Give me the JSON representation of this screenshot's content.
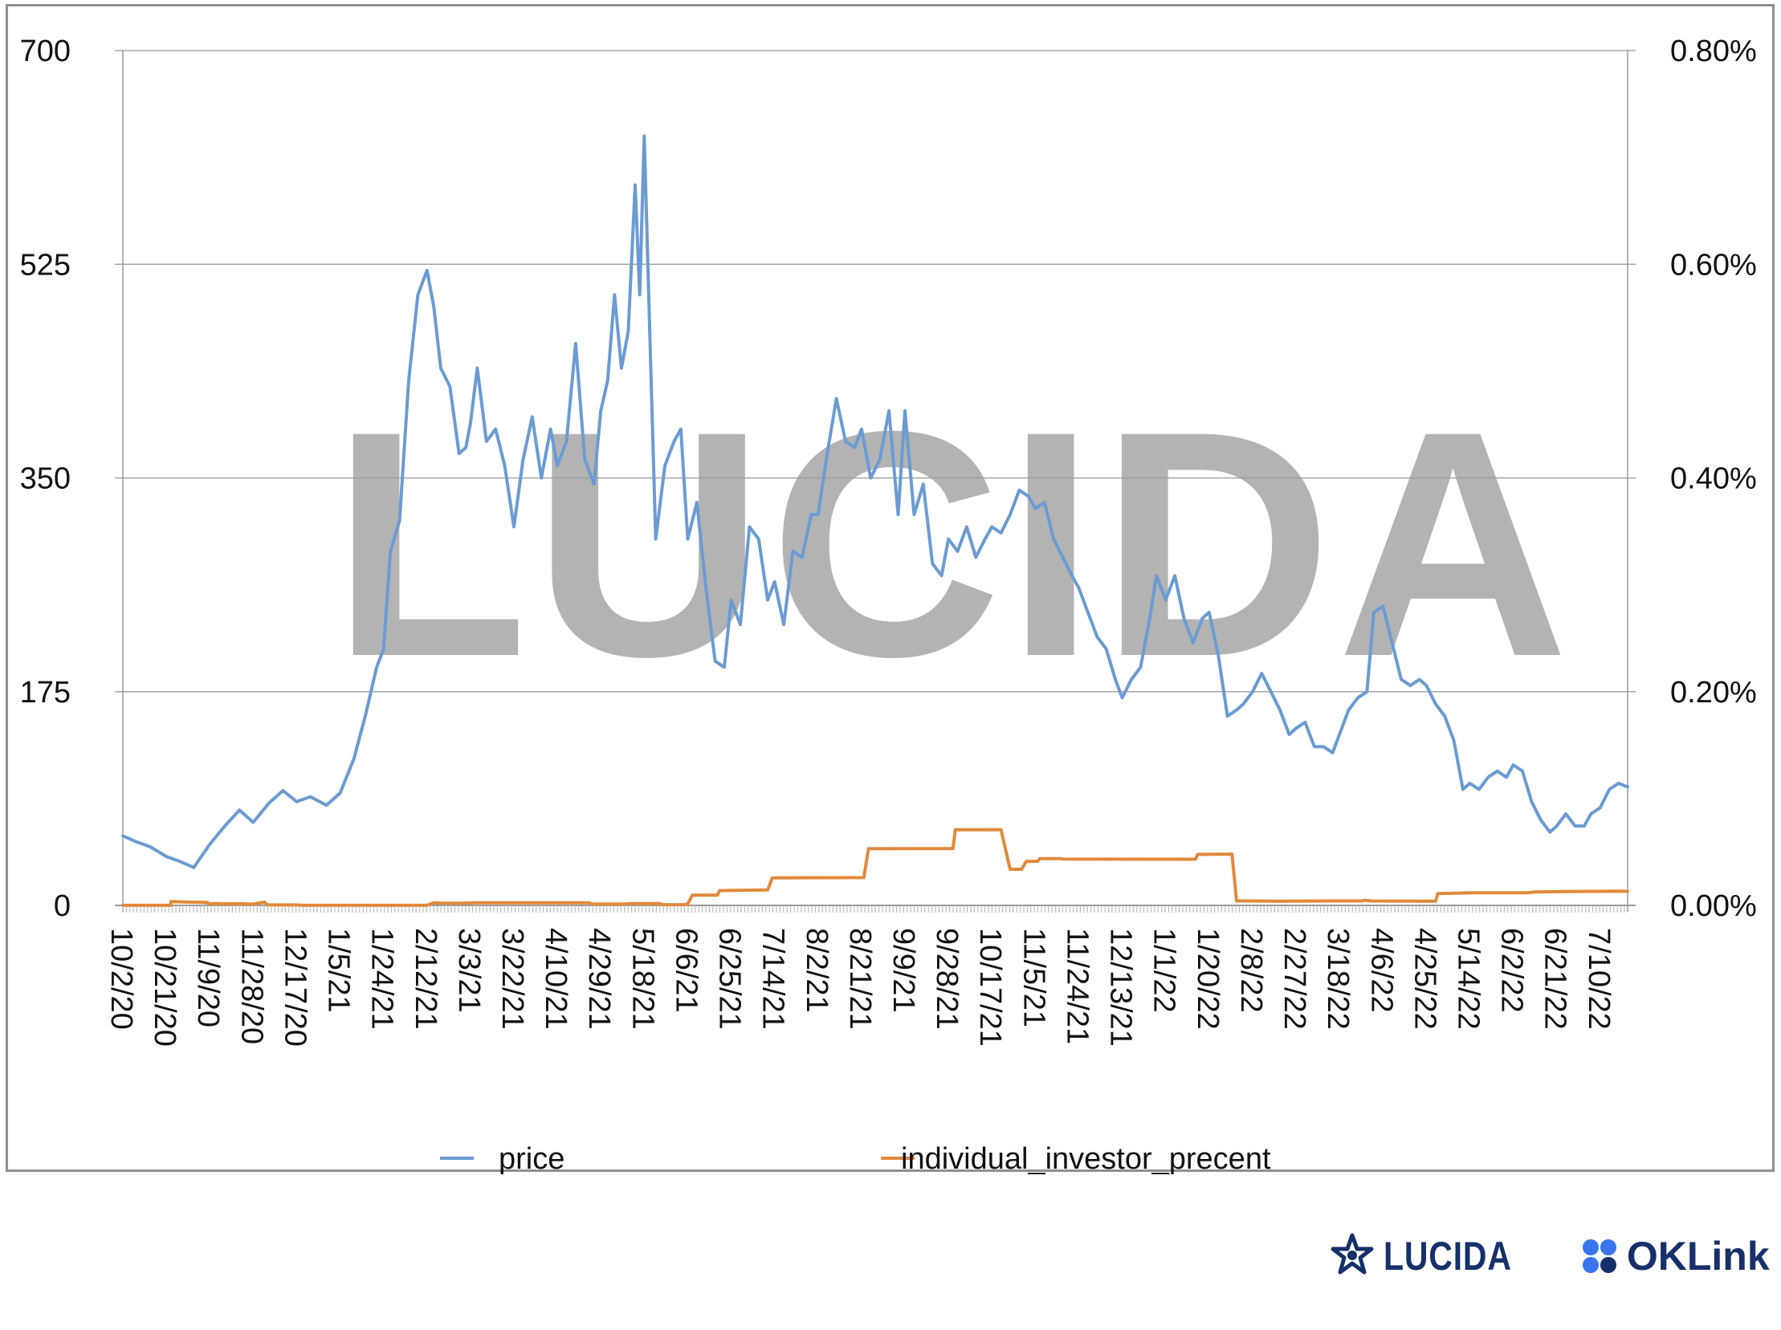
{
  "chart_data": {
    "type": "line",
    "watermark": "LUCIDA",
    "x_tick_labels": [
      "10/2/20",
      "10/21/20",
      "11/9/20",
      "11/28/20",
      "12/17/20",
      "1/5/21",
      "1/24/21",
      "2/12/21",
      "3/3/21",
      "3/22/21",
      "4/10/21",
      "4/29/21",
      "5/18/21",
      "6/6/21",
      "6/25/21",
      "7/14/21",
      "8/2/21",
      "8/21/21",
      "9/9/21",
      "9/28/21",
      "10/17/21",
      "11/5/21",
      "11/24/21",
      "12/13/21",
      "1/1/22",
      "1/20/22",
      "2/8/22",
      "2/27/22",
      "3/18/22",
      "4/6/22",
      "4/25/22",
      "5/14/22",
      "6/2/22",
      "6/21/22",
      "7/10/22"
    ],
    "y_left": {
      "ticks": [
        "0",
        "175",
        "350",
        "525",
        "700"
      ],
      "min": 0,
      "max": 700
    },
    "y_right": {
      "ticks": [
        "0.00%",
        "0.20%",
        "0.40%",
        "0.60%",
        "0.80%"
      ],
      "min": 0,
      "max": 0.8
    },
    "grid": true,
    "legend_position": "bottom",
    "series": [
      {
        "name": "price",
        "axis": "left",
        "color": "#6b9bd2",
        "points": [
          [
            "10/2/20",
            57
          ],
          [
            "10/8/20",
            52
          ],
          [
            "10/14/20",
            48
          ],
          [
            "10/21/20",
            40
          ],
          [
            "10/27/20",
            36
          ],
          [
            "11/2/20",
            31
          ],
          [
            "11/9/20",
            50
          ],
          [
            "11/16/20",
            66
          ],
          [
            "11/22/20",
            78
          ],
          [
            "11/28/20",
            68
          ],
          [
            "12/5/20",
            84
          ],
          [
            "12/11/20",
            94
          ],
          [
            "12/17/20",
            85
          ],
          [
            "12/23/20",
            89
          ],
          [
            "12/30/20",
            82
          ],
          [
            "1/5/21",
            92
          ],
          [
            "1/11/21",
            120
          ],
          [
            "1/16/21",
            155
          ],
          [
            "1/21/21",
            195
          ],
          [
            "1/24/21",
            210
          ],
          [
            "1/27/21",
            290
          ],
          [
            "1/31/21",
            315
          ],
          [
            "2/4/21",
            430
          ],
          [
            "2/8/21",
            500
          ],
          [
            "2/12/21",
            520
          ],
          [
            "2/15/21",
            490
          ],
          [
            "2/18/21",
            440
          ],
          [
            "2/22/21",
            425
          ],
          [
            "2/26/21",
            370
          ],
          [
            "3/1/21",
            375
          ],
          [
            "3/3/21",
            395
          ],
          [
            "3/6/21",
            440
          ],
          [
            "3/10/21",
            380
          ],
          [
            "3/14/21",
            390
          ],
          [
            "3/18/21",
            360
          ],
          [
            "3/22/21",
            310
          ],
          [
            "3/26/21",
            365
          ],
          [
            "3/30/21",
            400
          ],
          [
            "4/3/21",
            350
          ],
          [
            "4/7/21",
            390
          ],
          [
            "4/10/21",
            360
          ],
          [
            "4/14/21",
            380
          ],
          [
            "4/18/21",
            460
          ],
          [
            "4/22/21",
            365
          ],
          [
            "4/26/21",
            345
          ],
          [
            "4/29/21",
            405
          ],
          [
            "5/2/21",
            430
          ],
          [
            "5/5/21",
            500
          ],
          [
            "5/8/21",
            440
          ],
          [
            "5/11/21",
            470
          ],
          [
            "5/14/21",
            590
          ],
          [
            "5/16/21",
            500
          ],
          [
            "5/18/21",
            630
          ],
          [
            "5/21/21",
            430
          ],
          [
            "5/23/21",
            300
          ],
          [
            "5/27/21",
            360
          ],
          [
            "5/31/21",
            380
          ],
          [
            "6/3/21",
            390
          ],
          [
            "6/6/21",
            300
          ],
          [
            "6/10/21",
            330
          ],
          [
            "6/14/21",
            260
          ],
          [
            "6/18/21",
            200
          ],
          [
            "6/22/21",
            195
          ],
          [
            "6/25/21",
            250
          ],
          [
            "6/29/21",
            230
          ],
          [
            "7/3/21",
            310
          ],
          [
            "7/7/21",
            300
          ],
          [
            "7/11/21",
            250
          ],
          [
            "7/14/21",
            265
          ],
          [
            "7/18/21",
            230
          ],
          [
            "7/22/21",
            290
          ],
          [
            "7/26/21",
            285
          ],
          [
            "7/30/21",
            320
          ],
          [
            "8/2/21",
            320
          ],
          [
            "8/6/21",
            370
          ],
          [
            "8/10/21",
            415
          ],
          [
            "8/14/21",
            380
          ],
          [
            "8/18/21",
            375
          ],
          [
            "8/21/21",
            390
          ],
          [
            "8/25/21",
            350
          ],
          [
            "8/29/21",
            365
          ],
          [
            "9/2/21",
            405
          ],
          [
            "9/6/21",
            320
          ],
          [
            "9/9/21",
            405
          ],
          [
            "9/13/21",
            320
          ],
          [
            "9/17/21",
            345
          ],
          [
            "9/21/21",
            280
          ],
          [
            "9/25/21",
            270
          ],
          [
            "9/28/21",
            300
          ],
          [
            "10/2/21",
            290
          ],
          [
            "10/6/21",
            310
          ],
          [
            "10/10/21",
            285
          ],
          [
            "10/14/21",
            300
          ],
          [
            "10/17/21",
            310
          ],
          [
            "10/21/21",
            305
          ],
          [
            "10/25/21",
            320
          ],
          [
            "10/29/21",
            340
          ],
          [
            "11/2/21",
            335
          ],
          [
            "11/5/21",
            325
          ],
          [
            "11/9/21",
            330
          ],
          [
            "11/13/21",
            300
          ],
          [
            "11/17/21",
            285
          ],
          [
            "11/21/21",
            270
          ],
          [
            "11/24/21",
            260
          ],
          [
            "11/28/21",
            240
          ],
          [
            "12/2/21",
            220
          ],
          [
            "12/6/21",
            210
          ],
          [
            "12/10/21",
            185
          ],
          [
            "12/13/21",
            170
          ],
          [
            "12/17/21",
            185
          ],
          [
            "12/21/21",
            195
          ],
          [
            "12/25/21",
            235
          ],
          [
            "12/28/21",
            270
          ],
          [
            "1/1/22",
            250
          ],
          [
            "1/5/22",
            270
          ],
          [
            "1/9/22",
            235
          ],
          [
            "1/13/22",
            215
          ],
          [
            "1/17/22",
            235
          ],
          [
            "1/20/22",
            240
          ],
          [
            "1/24/22",
            205
          ],
          [
            "1/28/22",
            155
          ],
          [
            "2/1/22",
            160
          ],
          [
            "2/4/22",
            165
          ],
          [
            "2/8/22",
            175
          ],
          [
            "2/12/22",
            190
          ],
          [
            "2/16/22",
            175
          ],
          [
            "2/20/22",
            160
          ],
          [
            "2/24/22",
            140
          ],
          [
            "2/27/22",
            145
          ],
          [
            "3/3/22",
            150
          ],
          [
            "3/7/22",
            130
          ],
          [
            "3/11/22",
            130
          ],
          [
            "3/15/22",
            125
          ],
          [
            "3/18/22",
            140
          ],
          [
            "3/22/22",
            160
          ],
          [
            "3/26/22",
            170
          ],
          [
            "3/30/22",
            175
          ],
          [
            "4/2/22",
            240
          ],
          [
            "4/6/22",
            245
          ],
          [
            "4/10/22",
            215
          ],
          [
            "4/14/22",
            185
          ],
          [
            "4/18/22",
            180
          ],
          [
            "4/22/22",
            185
          ],
          [
            "4/25/22",
            180
          ],
          [
            "4/29/22",
            165
          ],
          [
            "5/3/22",
            155
          ],
          [
            "5/7/22",
            135
          ],
          [
            "5/11/22",
            95
          ],
          [
            "5/14/22",
            100
          ],
          [
            "5/18/22",
            95
          ],
          [
            "5/22/22",
            105
          ],
          [
            "5/26/22",
            110
          ],
          [
            "5/30/22",
            105
          ],
          [
            "6/2/22",
            115
          ],
          [
            "6/6/22",
            110
          ],
          [
            "6/10/22",
            85
          ],
          [
            "6/14/22",
            70
          ],
          [
            "6/18/22",
            60
          ],
          [
            "6/21/22",
            65
          ],
          [
            "6/25/22",
            75
          ],
          [
            "6/29/22",
            65
          ],
          [
            "7/3/22",
            65
          ],
          [
            "7/6/22",
            75
          ],
          [
            "7/10/22",
            80
          ],
          [
            "7/14/22",
            95
          ],
          [
            "7/18/22",
            100
          ],
          [
            "7/22/22",
            97
          ]
        ]
      },
      {
        "name": "individual_investor_precent",
        "axis": "right",
        "color": "#e08a3c",
        "points": [
          [
            "10/2/20",
            0.0001
          ],
          [
            "10/23/20",
            0.0001
          ],
          [
            "10/23/20",
            0.0035
          ],
          [
            "10/29/20",
            0.0032
          ],
          [
            "11/8/20",
            0.0028
          ],
          [
            "11/8/20",
            0.0015
          ],
          [
            "11/12/20",
            0.0018
          ],
          [
            "11/15/20",
            0.0015
          ],
          [
            "11/24/20",
            0.0016
          ],
          [
            "11/24/20",
            0.0013
          ],
          [
            "11/28/20",
            0.0013
          ],
          [
            "12/3/20",
            0.003
          ],
          [
            "12/4/20",
            0.0006
          ],
          [
            "12/18/20",
            0.0004
          ],
          [
            "12/20/20",
            0.0001
          ],
          [
            "2/12/21",
            0.0001
          ],
          [
            "2/15/21",
            0.0025
          ],
          [
            "2/18/21",
            0.002
          ],
          [
            "2/28/21",
            0.002
          ],
          [
            "3/5/21",
            0.0024
          ],
          [
            "4/24/21",
            0.0024
          ],
          [
            "4/25/21",
            0.0013
          ],
          [
            "5/10/21",
            0.0013
          ],
          [
            "5/11/21",
            0.0017
          ],
          [
            "5/25/21",
            0.0017
          ],
          [
            "5/26/21",
            0.0007
          ],
          [
            "6/4/21",
            0.0007
          ],
          [
            "6/6/21",
            0.0012
          ],
          [
            "6/8/21",
            0.0096
          ],
          [
            "6/19/21",
            0.0096
          ],
          [
            "6/20/21",
            0.0138
          ],
          [
            "6/28/21",
            0.0141
          ],
          [
            "7/10/21",
            0.0145
          ],
          [
            "7/11/21",
            0.0145
          ],
          [
            "7/13/21",
            0.0258
          ],
          [
            "8/22/21",
            0.026
          ],
          [
            "8/24/21",
            0.053
          ],
          [
            "9/30/21",
            0.0532
          ],
          [
            "10/1/21",
            0.0708
          ],
          [
            "10/21/21",
            0.0709
          ],
          [
            "10/25/21",
            0.0338
          ],
          [
            "10/30/21",
            0.0338
          ],
          [
            "11/1/21",
            0.0412
          ],
          [
            "11/6/21",
            0.0413
          ],
          [
            "11/7/21",
            0.0437
          ],
          [
            "11/16/21",
            0.0437
          ],
          [
            "11/17/21",
            0.0434
          ],
          [
            "1/14/22",
            0.0432
          ],
          [
            "1/15/22",
            0.0477
          ],
          [
            "1/30/22",
            0.048
          ],
          [
            "2/1/22",
            0.0042
          ],
          [
            "2/20/22",
            0.004
          ],
          [
            "3/15/22",
            0.0041
          ],
          [
            "3/28/22",
            0.0041
          ],
          [
            "3/29/22",
            0.0048
          ],
          [
            "4/1/22",
            0.0041
          ],
          [
            "4/29/22",
            0.0039
          ],
          [
            "4/30/22",
            0.0111
          ],
          [
            "5/16/22",
            0.0118
          ],
          [
            "6/8/22",
            0.0119
          ],
          [
            "6/12/22",
            0.0126
          ],
          [
            "6/24/22",
            0.0129
          ],
          [
            "7/20/22",
            0.0133
          ],
          [
            "7/22/22",
            0.013
          ]
        ]
      }
    ]
  },
  "brands": {
    "lucida": "LUCIDA",
    "oklink": "OKLink"
  }
}
